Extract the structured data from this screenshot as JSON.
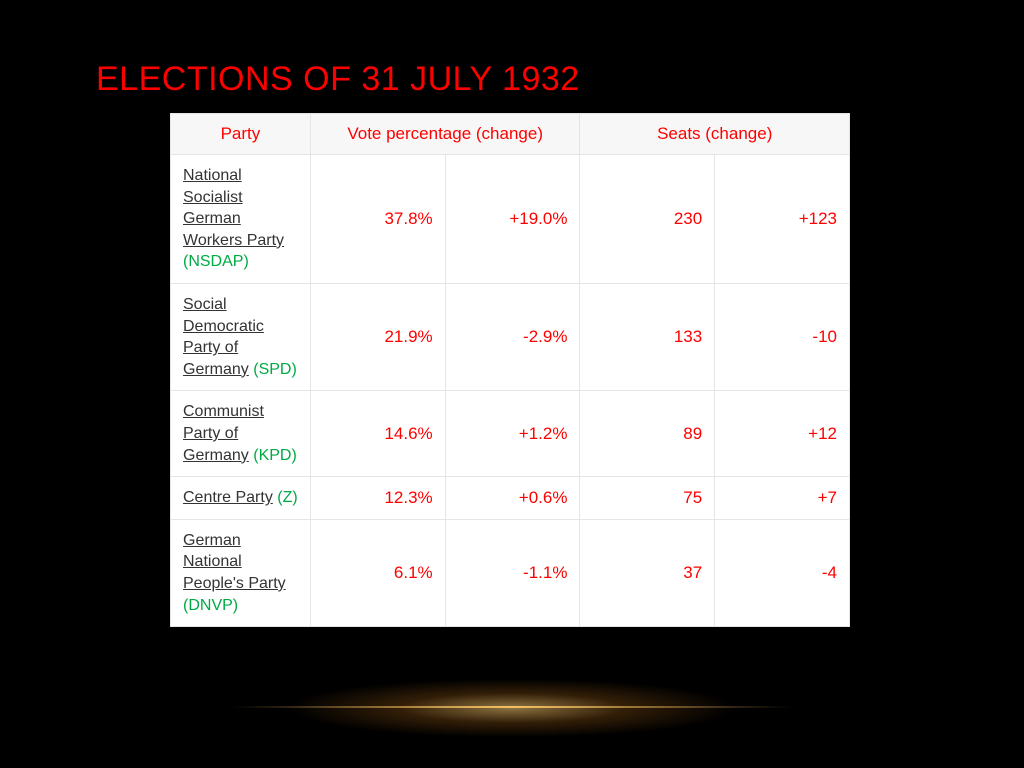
{
  "slide": {
    "title": "ELECTIONS OF 31 JULY 1932",
    "background_color": "#000000",
    "title_color": "#ff0000",
    "title_fontsize": 34
  },
  "table": {
    "type": "table",
    "header_bg": "#f7f7f7",
    "header_color": "#ff0000",
    "cell_border_color": "#e5e5e5",
    "numeric_color": "#ff0000",
    "party_name_color": "#333333",
    "party_abbr_color": "#00aa44",
    "columns": {
      "party": "Party",
      "vote": "Vote percentage (change)",
      "seats": "Seats (change)"
    },
    "rows": [
      {
        "party_name": "National Socialist German Workers Party",
        "party_abbr": "(NSDAP)",
        "vote_pct": "37.8%",
        "vote_change": "+19.0%",
        "seats": "230",
        "seats_change": "+123"
      },
      {
        "party_name": "Social Democratic Party of Germany",
        "party_abbr": "(SPD)",
        "vote_pct": "21.9%",
        "vote_change": "-2.9%",
        "seats": "133",
        "seats_change": "-10"
      },
      {
        "party_name": "Communist Party of Germany",
        "party_abbr": "(KPD)",
        "vote_pct": "14.6%",
        "vote_change": "+1.2%",
        "seats": "89",
        "seats_change": "+12"
      },
      {
        "party_name": "Centre Party",
        "party_abbr": "(Z)",
        "vote_pct": "12.3%",
        "vote_change": "+0.6%",
        "seats": "75",
        "seats_change": "+7"
      },
      {
        "party_name": "German National People's Party",
        "party_abbr": "(DNVP)",
        "vote_pct": "6.1%",
        "vote_change": "-1.1%",
        "seats": "37",
        "seats_change": "-4"
      }
    ]
  },
  "glow": {
    "accent_color": "#ffc864",
    "line_color": "#ffc864"
  }
}
